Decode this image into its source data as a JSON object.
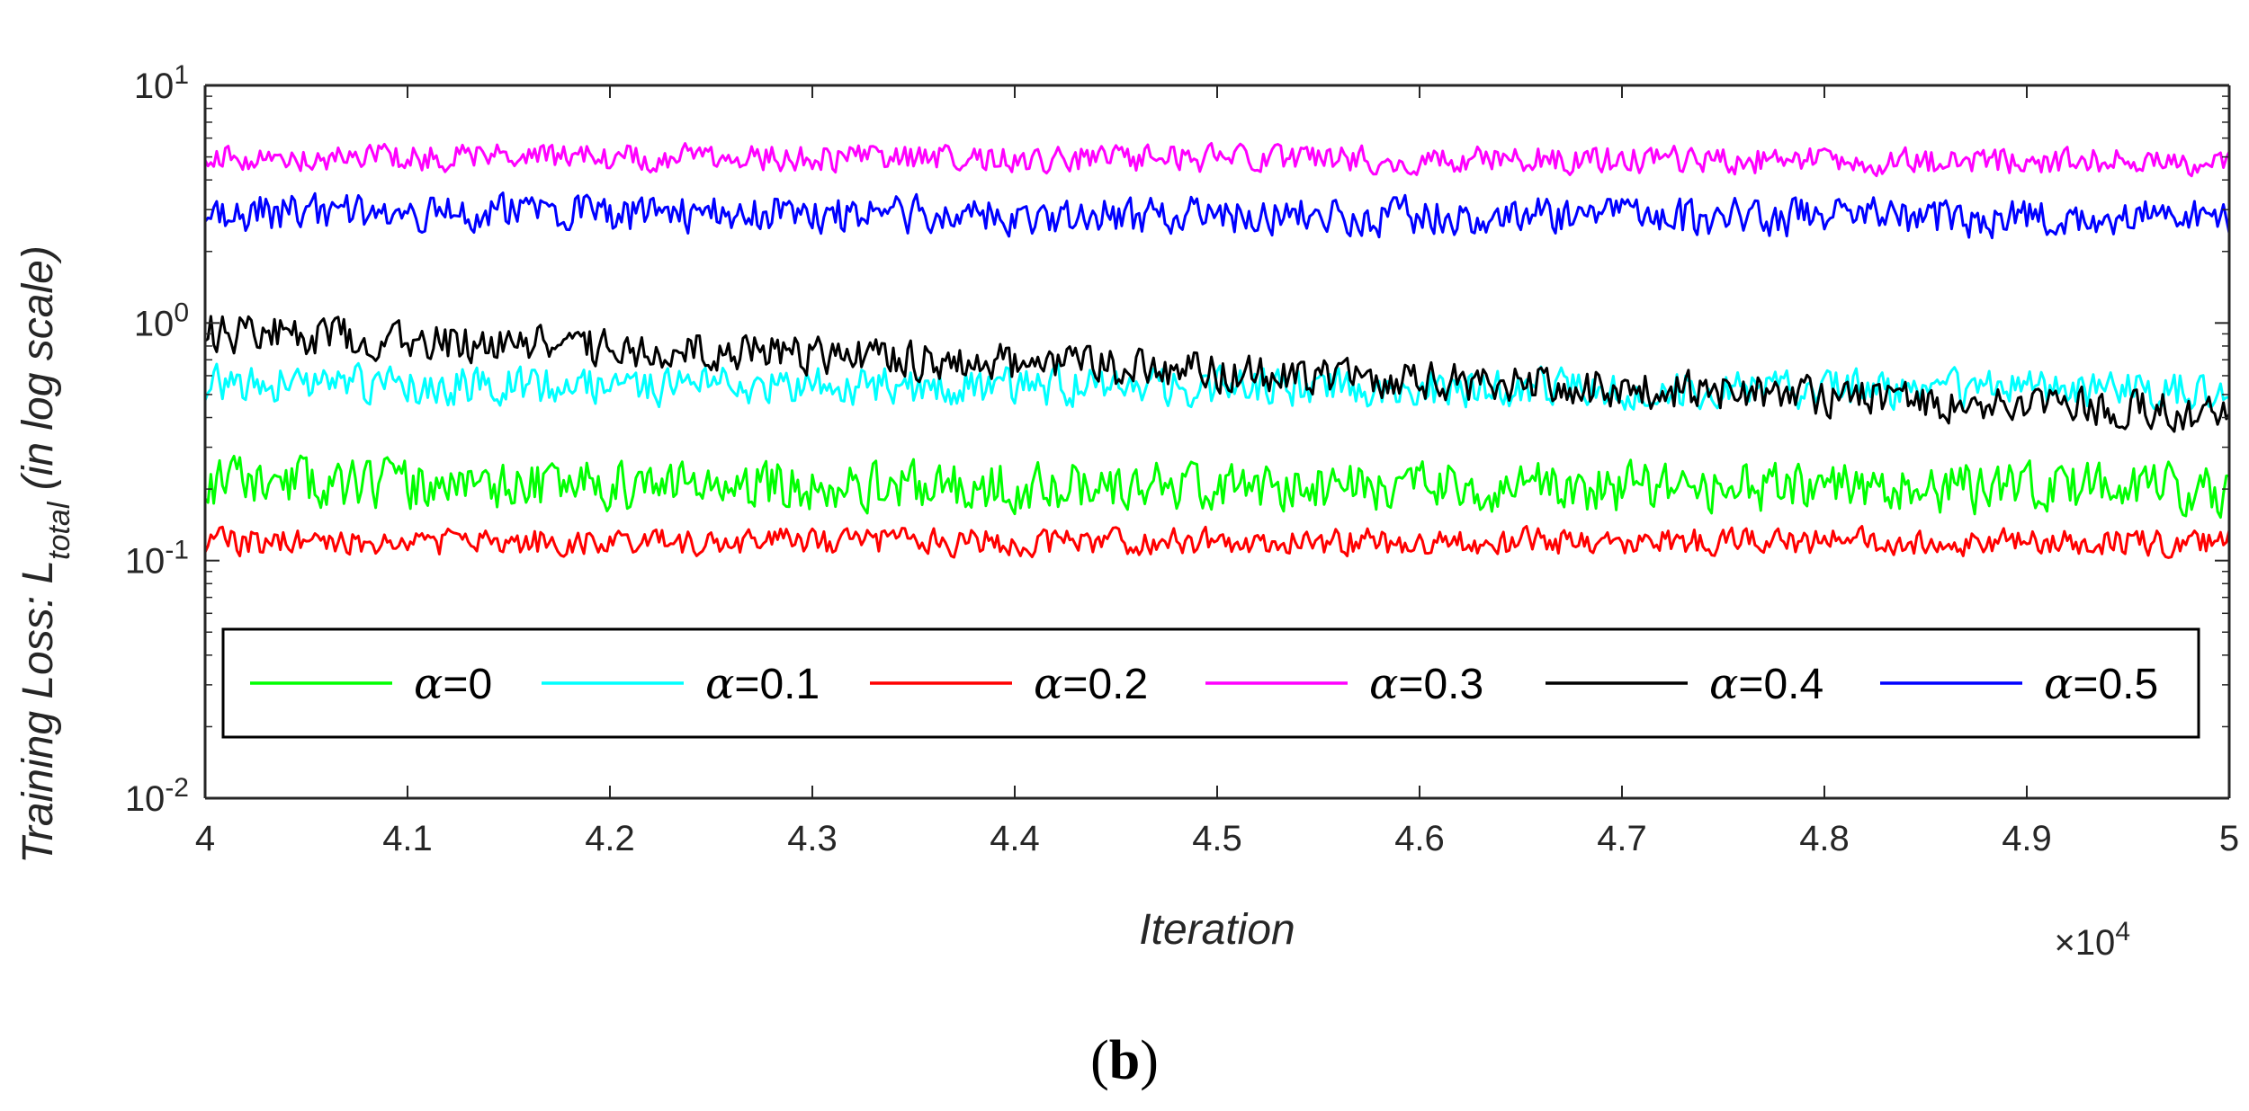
{
  "chart_data": {
    "type": "line",
    "title": "",
    "xlabel": "Iteration",
    "x_multiplier_label": "×10",
    "x_multiplier_exponent": "4",
    "ylabel": {
      "prefix": "Training Loss: L",
      "subscript": "total",
      "suffix": " (in log scale)"
    },
    "yscale": "log",
    "xlim": [
      4.0,
      5.0
    ],
    "ylim": [
      0.01,
      10
    ],
    "xticks": [
      "4",
      "4.1",
      "4.2",
      "4.3",
      "4.4",
      "4.5",
      "4.6",
      "4.7",
      "4.8",
      "4.9",
      "5"
    ],
    "xtick_values": [
      4.0,
      4.1,
      4.2,
      4.3,
      4.4,
      4.5,
      4.6,
      4.7,
      4.8,
      4.9,
      5.0
    ],
    "yticks": [
      {
        "value": 10,
        "base": "10",
        "exp": "1"
      },
      {
        "value": 1,
        "base": "10",
        "exp": "0"
      },
      {
        "value": 0.1,
        "base": "10",
        "exp": "-1"
      },
      {
        "value": 0.01,
        "base": "10",
        "exp": "-2"
      }
    ],
    "legend_position": "bottom",
    "grid": false,
    "series": [
      {
        "name": "α=0",
        "symbol": "α",
        "value_label": "=0",
        "color": "#00ff00",
        "start": 0.21,
        "end": 0.2,
        "noise": 0.13,
        "seed": 11
      },
      {
        "name": "α=0.1",
        "symbol": "α",
        "value_label": "=0.1",
        "color": "#00ffff",
        "start": 0.55,
        "end": 0.52,
        "noise": 0.1,
        "seed": 23
      },
      {
        "name": "α=0.2",
        "symbol": "α",
        "value_label": "=0.2",
        "color": "#ff0000",
        "start": 0.12,
        "end": 0.12,
        "noise": 0.07,
        "seed": 37
      },
      {
        "name": "α=0.3",
        "symbol": "α",
        "value_label": "=0.3",
        "color": "#ff00ff",
        "start": 5.0,
        "end": 4.8,
        "noise": 0.07,
        "seed": 41
      },
      {
        "name": "α=0.4",
        "symbol": "α",
        "value_label": "=0.4",
        "color": "#000000",
        "start": 0.92,
        "end": 0.42,
        "noise": 0.1,
        "seed": 53
      },
      {
        "name": "α=0.5",
        "symbol": "α",
        "value_label": "=0.5",
        "color": "#0000ff",
        "start": 2.9,
        "end": 2.75,
        "noise": 0.1,
        "seed": 67
      }
    ]
  },
  "caption": {
    "open": "(",
    "letter": "b",
    "close": ")"
  }
}
